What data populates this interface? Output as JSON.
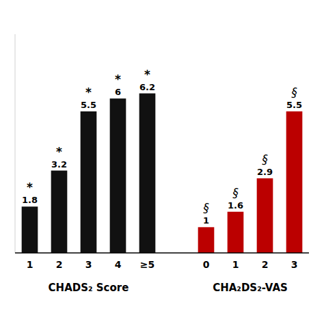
{
  "chart_data": [
    {
      "type": "bar",
      "xlabel": "CHADS₂ Score",
      "categories": [
        "1",
        "2",
        "3",
        "4",
        "≥5"
      ],
      "values": [
        1.8,
        3.2,
        5.5,
        6.0,
        6.2
      ],
      "color": "#111111",
      "annotations": [
        "*",
        "*",
        "*",
        "*",
        "*"
      ],
      "ylim": [
        0,
        8.5
      ],
      "tick_labels": "x",
      "data_labels": true,
      "grid": false
    },
    {
      "type": "bar",
      "xlabel": "CHA₂DS₂-VAS",
      "categories": [
        "0",
        "1",
        "2",
        "3"
      ],
      "values": [
        1.0,
        1.6,
        2.9,
        5.5
      ],
      "color": "#bb0000",
      "annotations": [
        "§",
        "§",
        "§",
        "§"
      ],
      "ylim": [
        0,
        8.5
      ],
      "tick_labels": "x",
      "data_labels": true,
      "grid": false
    }
  ]
}
